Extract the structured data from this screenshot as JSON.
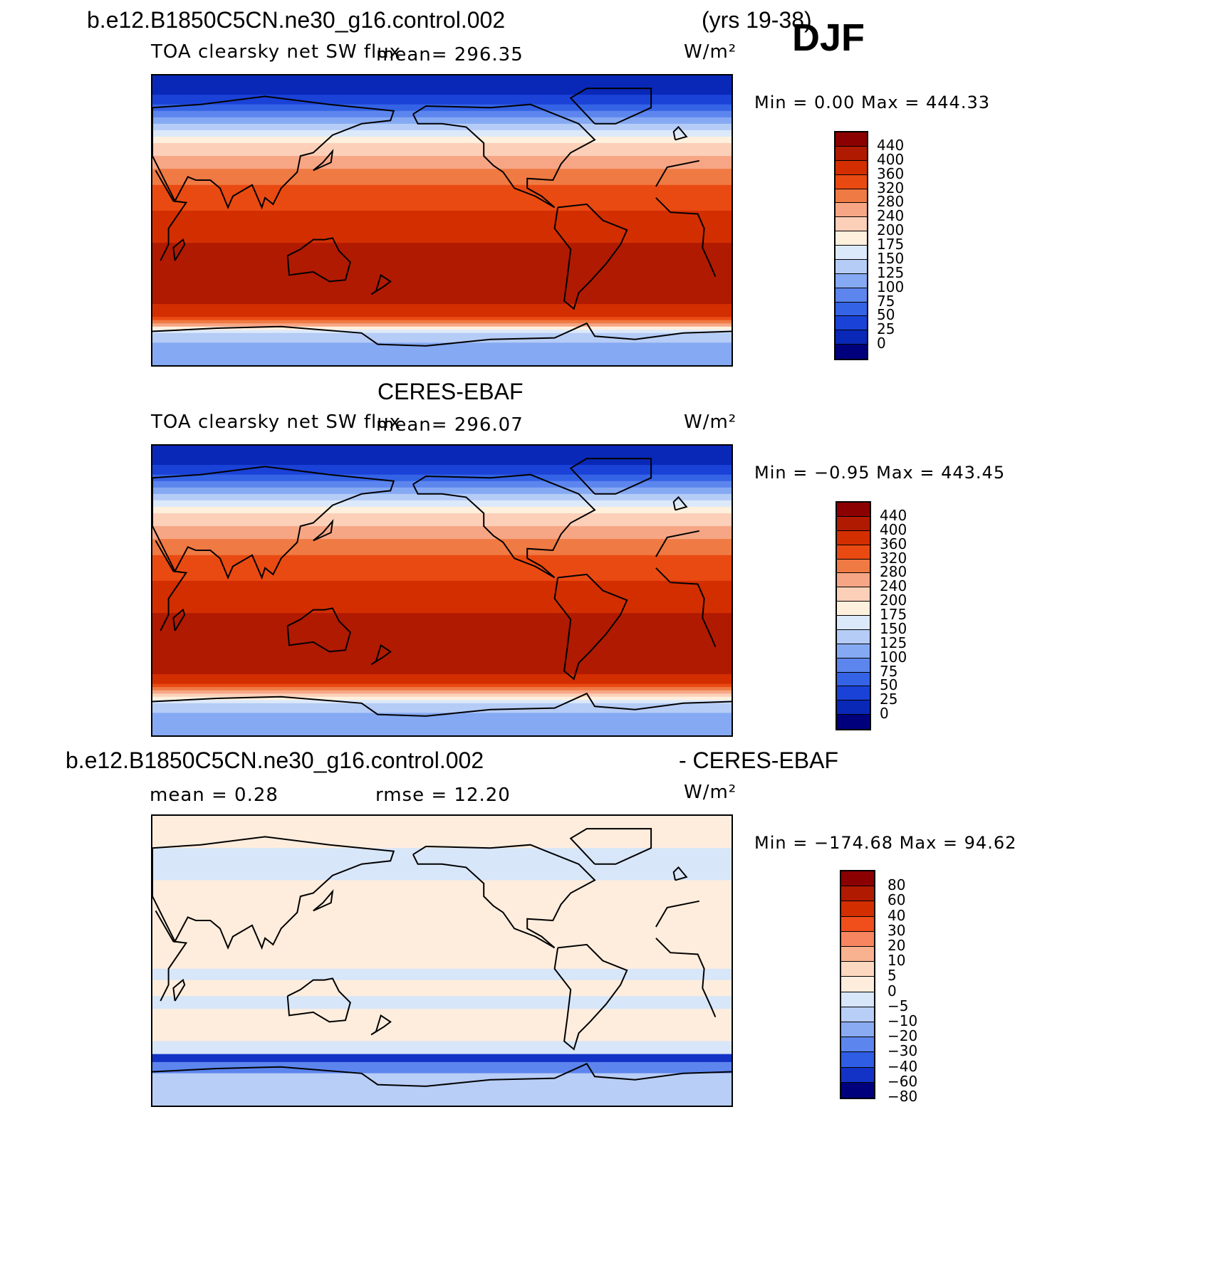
{
  "header": {
    "case_name": "b.e12.B1850C5CN.ne30_g16.control.002",
    "years": "(yrs 19-38)",
    "season": "DJF"
  },
  "panels": [
    {
      "id": "model",
      "title": "",
      "variable": "TOA clearsky net SW flux",
      "mean_text": "mean=  296.35",
      "units": "W/m²",
      "minmax": "Min  =    0.00  Max  =  444.33",
      "colorbar_labels": [
        "440",
        "400",
        "360",
        "320",
        "280",
        "240",
        "200",
        "175",
        "150",
        "125",
        "100",
        "75",
        "50",
        "25",
        "0"
      ]
    },
    {
      "id": "obs",
      "title": "CERES-EBAF",
      "variable": "TOA clearsky net SW flux",
      "mean_text": "mean=  296.07",
      "units": "W/m²",
      "minmax": "Min  =  −0.95  Max  =  443.45",
      "colorbar_labels": [
        "440",
        "400",
        "360",
        "320",
        "280",
        "240",
        "200",
        "175",
        "150",
        "125",
        "100",
        "75",
        "50",
        "25",
        "0"
      ]
    },
    {
      "id": "diff",
      "title_left": "b.e12.B1850C5CN.ne30_g16.control.002",
      "title_right": "- CERES-EBAF",
      "mean_text": "mean  =     0.28",
      "rmse_text": "rmse  =    12.20",
      "units": "W/m²",
      "minmax": "Min  =  −174.68  Max  =    94.62",
      "colorbar_labels": [
        "80",
        "60",
        "40",
        "30",
        "20",
        "10",
        "5",
        "0",
        "−5",
        "−10",
        "−20",
        "−30",
        "−40",
        "−60",
        "−80"
      ]
    }
  ],
  "colors": {
    "abs_scale": [
      "#8b0000",
      "#b01a00",
      "#d32e00",
      "#e94a12",
      "#f07a43",
      "#f6a685",
      "#fccfb8",
      "#fff0dd",
      "#dce9fb",
      "#b5ccf7",
      "#85a9f2",
      "#5c86ee",
      "#3563e6",
      "#1a42d6",
      "#0a28b8",
      "#00007d"
    ],
    "diff_scale": [
      "#8b0000",
      "#b01a00",
      "#d32e00",
      "#f04f1b",
      "#f7855f",
      "#f9b28f",
      "#fdd8c0",
      "#feecdc",
      "#d8e6fa",
      "#b8cef7",
      "#8aabf2",
      "#5c86ee",
      "#2f5ee4",
      "#1233c6",
      "#00007d"
    ]
  },
  "chart_data": [
    {
      "type": "heatmap",
      "title": "TOA clearsky net SW flux",
      "subtitle": "b.e12.B1850C5CN.ne30_g16.control.002 (yrs 19-38) DJF",
      "units": "W/m²",
      "mean": 296.35,
      "min": 0.0,
      "max": 444.33,
      "levels": [
        0,
        25,
        50,
        75,
        100,
        125,
        150,
        175,
        200,
        240,
        280,
        320,
        360,
        400,
        440
      ],
      "zonal_profile": {
        "lat": [
          90,
          80,
          70,
          60,
          50,
          40,
          30,
          20,
          10,
          0,
          -10,
          -20,
          -30,
          -40,
          -50,
          -60,
          -70,
          -80,
          -90
        ],
        "value": [
          0,
          20,
          60,
          130,
          190,
          245,
          290,
          325,
          350,
          370,
          390,
          410,
          440,
          430,
          410,
          360,
          130,
          120,
          120
        ]
      }
    },
    {
      "type": "heatmap",
      "title": "TOA clearsky net SW flux",
      "subtitle": "CERES-EBAF",
      "units": "W/m²",
      "mean": 296.07,
      "min": -0.95,
      "max": 443.45,
      "levels": [
        0,
        25,
        50,
        75,
        100,
        125,
        150,
        175,
        200,
        240,
        280,
        320,
        360,
        400,
        440
      ],
      "zonal_profile": {
        "lat": [
          90,
          80,
          70,
          60,
          50,
          40,
          30,
          20,
          10,
          0,
          -10,
          -20,
          -30,
          -40,
          -50,
          -60,
          -70,
          -80,
          -90
        ],
        "value": [
          0,
          20,
          60,
          130,
          190,
          245,
          290,
          325,
          350,
          370,
          390,
          410,
          440,
          430,
          410,
          340,
          130,
          120,
          120
        ]
      }
    },
    {
      "type": "heatmap",
      "title": "b.e12.B1850C5CN.ne30_g16.control.002 - CERES-EBAF",
      "units": "W/m²",
      "mean": 0.28,
      "rmse": 12.2,
      "min": -174.68,
      "max": 94.62,
      "levels": [
        -80,
        -60,
        -40,
        -30,
        -20,
        -10,
        -5,
        0,
        5,
        10,
        20,
        30,
        40,
        60,
        80
      ]
    }
  ]
}
